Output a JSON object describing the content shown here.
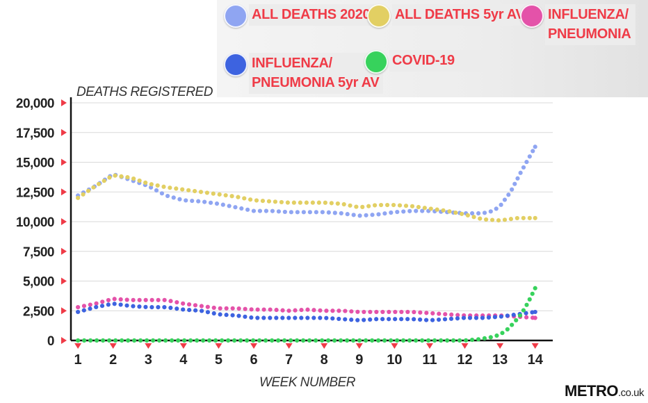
{
  "legend": [
    {
      "label": "ALL DEATHS 2020",
      "color": "#8fa5f2"
    },
    {
      "label": "ALL DEATHS 5yr AV",
      "color": "#e2cf63"
    },
    {
      "label": "INFLUENZA/\nPNEUMONIA",
      "color": "#e452a9"
    },
    {
      "label": "INFLUENZA/\nPNEUMONIA 5yr AV",
      "color": "#3d63e0"
    },
    {
      "label": "COVID-19",
      "color": "#37d25c"
    }
  ],
  "watermark": {
    "brand": "METRO",
    "domain": ".co.uk"
  },
  "chart_data": {
    "type": "line",
    "ylabel": "DEATHS REGISTERED",
    "xlabel": "WEEK NUMBER",
    "ylim": [
      0,
      20000
    ],
    "xlim": [
      0.8,
      14.5
    ],
    "yticks": [
      "0",
      "2,500",
      "5,000",
      "7,500",
      "10,000",
      "12,500",
      "15,000",
      "17,500",
      "20,000"
    ],
    "xticks": [
      "1",
      "2",
      "3",
      "4",
      "5",
      "6",
      "7",
      "8",
      "9",
      "10",
      "11",
      "12",
      "13",
      "14"
    ],
    "grid": "horizontal",
    "style": "dotted",
    "series": [
      {
        "name": "ALL DEATHS 2020",
        "color": "#8fa5f2",
        "points": [
          [
            1,
            12200
          ],
          [
            1.5,
            13000
          ],
          [
            2,
            14000
          ],
          [
            2.5,
            13500
          ],
          [
            3,
            13000
          ],
          [
            3.5,
            12200
          ],
          [
            4,
            11800
          ],
          [
            4.5,
            11700
          ],
          [
            5,
            11500
          ],
          [
            5.5,
            11200
          ],
          [
            6,
            10900
          ],
          [
            6.5,
            10900
          ],
          [
            7,
            10800
          ],
          [
            7.5,
            10800
          ],
          [
            8,
            10800
          ],
          [
            8.5,
            10700
          ],
          [
            9,
            10500
          ],
          [
            9.5,
            10600
          ],
          [
            10,
            10800
          ],
          [
            10.5,
            10900
          ],
          [
            11,
            10900
          ],
          [
            11.5,
            10800
          ],
          [
            12,
            10700
          ],
          [
            12.5,
            10700
          ],
          [
            12.8,
            10900
          ],
          [
            13,
            11300
          ],
          [
            13.3,
            12500
          ],
          [
            13.6,
            14200
          ],
          [
            14,
            16300
          ]
        ]
      },
      {
        "name": "ALL DEATHS 5yr AV",
        "color": "#e2cf63",
        "points": [
          [
            1,
            12000
          ],
          [
            1.5,
            13000
          ],
          [
            2,
            13900
          ],
          [
            2.5,
            13700
          ],
          [
            3,
            13200
          ],
          [
            3.5,
            12900
          ],
          [
            4,
            12700
          ],
          [
            4.5,
            12500
          ],
          [
            5,
            12300
          ],
          [
            5.5,
            12100
          ],
          [
            6,
            11800
          ],
          [
            6.5,
            11700
          ],
          [
            7,
            11600
          ],
          [
            7.5,
            11600
          ],
          [
            8,
            11600
          ],
          [
            8.5,
            11500
          ],
          [
            9,
            11200
          ],
          [
            9.5,
            11400
          ],
          [
            10,
            11400
          ],
          [
            10.5,
            11300
          ],
          [
            11,
            11100
          ],
          [
            11.5,
            10900
          ],
          [
            12,
            10600
          ],
          [
            12.5,
            10200
          ],
          [
            13,
            10100
          ],
          [
            13.5,
            10300
          ],
          [
            14,
            10300
          ]
        ]
      },
      {
        "name": "INFLUENZA/\nPNEUMONIA",
        "color": "#e452a9",
        "points": [
          [
            1,
            2800
          ],
          [
            1.5,
            3100
          ],
          [
            2,
            3500
          ],
          [
            2.5,
            3400
          ],
          [
            3,
            3400
          ],
          [
            3.5,
            3400
          ],
          [
            4,
            3100
          ],
          [
            4.5,
            2900
          ],
          [
            5,
            2700
          ],
          [
            5.5,
            2700
          ],
          [
            6,
            2600
          ],
          [
            6.5,
            2600
          ],
          [
            7,
            2500
          ],
          [
            7.5,
            2600
          ],
          [
            8,
            2500
          ],
          [
            8.5,
            2500
          ],
          [
            9,
            2400
          ],
          [
            9.5,
            2400
          ],
          [
            10,
            2400
          ],
          [
            10.5,
            2400
          ],
          [
            11,
            2300
          ],
          [
            11.5,
            2200
          ],
          [
            12,
            2100
          ],
          [
            12.5,
            2100
          ],
          [
            13,
            2100
          ],
          [
            13.5,
            2000
          ],
          [
            14,
            1900
          ]
        ]
      },
      {
        "name": "INFLUENZA/\nPNEUMONIA 5yr AV",
        "color": "#3d63e0",
        "points": [
          [
            1,
            2400
          ],
          [
            1.5,
            2800
          ],
          [
            2,
            3100
          ],
          [
            2.5,
            2900
          ],
          [
            3,
            2800
          ],
          [
            3.5,
            2800
          ],
          [
            4,
            2600
          ],
          [
            4.5,
            2500
          ],
          [
            5,
            2200
          ],
          [
            5.5,
            2100
          ],
          [
            6,
            1900
          ],
          [
            6.5,
            1900
          ],
          [
            7,
            1900
          ],
          [
            7.5,
            1900
          ],
          [
            8,
            1900
          ],
          [
            8.5,
            1800
          ],
          [
            9,
            1700
          ],
          [
            9.5,
            1800
          ],
          [
            10,
            1800
          ],
          [
            10.5,
            1800
          ],
          [
            11,
            1700
          ],
          [
            11.5,
            1800
          ],
          [
            12,
            1900
          ],
          [
            12.5,
            1900
          ],
          [
            13,
            2000
          ],
          [
            13.5,
            2200
          ],
          [
            14,
            2400
          ]
        ]
      },
      {
        "name": "COVID-19",
        "color": "#37d25c",
        "points": [
          [
            1,
            0
          ],
          [
            2,
            0
          ],
          [
            3,
            0
          ],
          [
            4,
            0
          ],
          [
            5,
            0
          ],
          [
            6,
            0
          ],
          [
            7,
            0
          ],
          [
            8,
            0
          ],
          [
            9,
            0
          ],
          [
            10,
            0
          ],
          [
            11,
            0
          ],
          [
            12,
            0
          ],
          [
            12.4,
            100
          ],
          [
            12.8,
            300
          ],
          [
            13,
            500
          ],
          [
            13.2,
            900
          ],
          [
            13.4,
            1500
          ],
          [
            13.6,
            2200
          ],
          [
            13.8,
            3200
          ],
          [
            14,
            4400
          ]
        ]
      }
    ]
  }
}
